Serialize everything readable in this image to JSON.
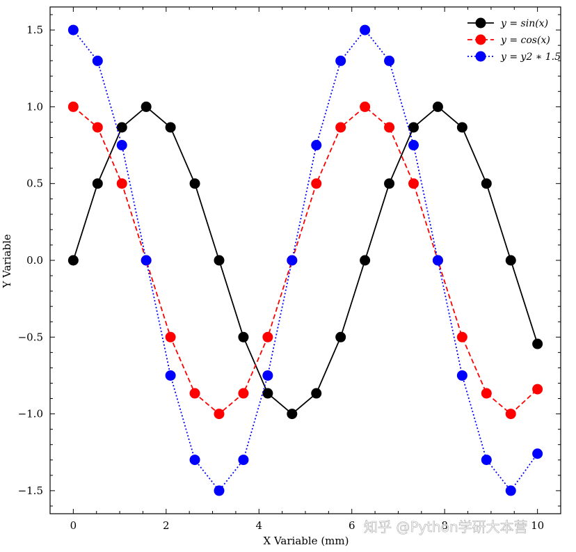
{
  "chart_data": {
    "type": "line",
    "title": "",
    "xlabel": "X Variable (mm)",
    "ylabel": "Y Variable",
    "xlim": [
      -0.5,
      10.5
    ],
    "ylim": [
      -1.65,
      1.65
    ],
    "xticks": [
      0,
      2,
      4,
      6,
      8,
      10
    ],
    "xtick_labels": [
      "0",
      "2",
      "4",
      "6",
      "8",
      "10"
    ],
    "yticks": [
      -1.5,
      -1.0,
      -0.5,
      0.0,
      0.5,
      1.0,
      1.5
    ],
    "ytick_labels": [
      "−1.5",
      "−1.0",
      "−0.5",
      "0.0",
      "0.5",
      "1.0",
      "1.5"
    ],
    "x": [
      0,
      0.5236,
      1.0472,
      1.5708,
      2.0944,
      2.618,
      3.1416,
      3.6652,
      4.1888,
      4.7124,
      5.236,
      5.7596,
      6.2832,
      6.8068,
      7.3304,
      7.854,
      8.3776,
      8.9012,
      9.4248,
      10.0
    ],
    "series": [
      {
        "name": "y = sin(x)",
        "color": "#000000",
        "dash": "solid",
        "values": [
          0.0,
          0.5,
          0.866,
          1.0,
          0.866,
          0.5,
          0.0,
          -0.5,
          -0.866,
          -1.0,
          -0.866,
          -0.5,
          0.0,
          0.5,
          0.866,
          1.0,
          0.866,
          0.5,
          0.0,
          -0.544
        ]
      },
      {
        "name": "y = cos(x)",
        "color": "#ff0000",
        "dash": "dashed",
        "values": [
          1.0,
          0.866,
          0.5,
          0.0,
          -0.5,
          -0.866,
          -1.0,
          -0.866,
          -0.5,
          0.0,
          0.5,
          0.866,
          1.0,
          0.866,
          0.5,
          0.0,
          -0.5,
          -0.866,
          -1.0,
          -0.839
        ]
      },
      {
        "name": "y = y2 ∗ 1.5",
        "color": "#0000ff",
        "dash": "dotted",
        "values": [
          1.5,
          1.299,
          0.75,
          0.0,
          -0.75,
          -1.299,
          -1.5,
          -1.299,
          -0.75,
          0.0,
          0.75,
          1.299,
          1.5,
          1.299,
          0.75,
          0.0,
          -0.75,
          -1.299,
          -1.5,
          -1.259
        ]
      }
    ],
    "legend": [
      "y = sin(x)",
      "y = cos(x)",
      "y = y2 ∗ 1.5"
    ],
    "legend_position": "top-right",
    "grid": false
  },
  "watermark": "知乎 @Python学研大本营"
}
